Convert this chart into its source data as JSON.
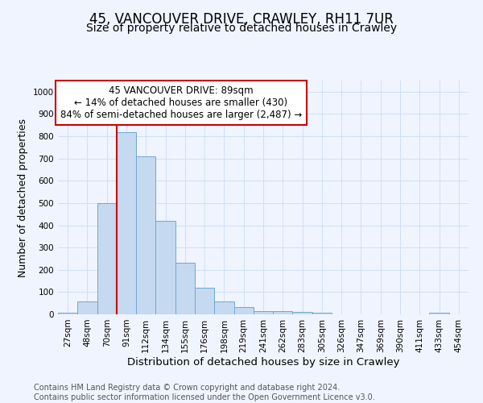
{
  "title": "45, VANCOUVER DRIVE, CRAWLEY, RH11 7UR",
  "subtitle": "Size of property relative to detached houses in Crawley",
  "xlabel": "Distribution of detached houses by size in Crawley",
  "ylabel": "Number of detached properties",
  "bin_labels": [
    "27sqm",
    "48sqm",
    "70sqm",
    "91sqm",
    "112sqm",
    "134sqm",
    "155sqm",
    "176sqm",
    "198sqm",
    "219sqm",
    "241sqm",
    "262sqm",
    "283sqm",
    "305sqm",
    "326sqm",
    "347sqm",
    "369sqm",
    "390sqm",
    "411sqm",
    "433sqm",
    "454sqm"
  ],
  "bar_values": [
    8,
    58,
    500,
    820,
    710,
    420,
    230,
    118,
    57,
    32,
    15,
    14,
    10,
    7,
    0,
    0,
    0,
    0,
    0,
    9,
    0
  ],
  "bar_color": "#c5d9f0",
  "bar_edge_color": "#6fa8d0",
  "background_color": "#f0f4ff",
  "grid_color": "#d0dff5",
  "vline_bin_index": 3,
  "vline_color": "#cc0000",
  "annotation_text": "45 VANCOUVER DRIVE: 89sqm\n← 14% of detached houses are smaller (430)\n84% of semi-detached houses are larger (2,487) →",
  "annotation_box_color": "#ffffff",
  "annotation_box_edge": "#cc0000",
  "ylim": [
    0,
    1050
  ],
  "yticks": [
    0,
    100,
    200,
    300,
    400,
    500,
    600,
    700,
    800,
    900,
    1000
  ],
  "footnote": "Contains HM Land Registry data © Crown copyright and database right 2024.\nContains public sector information licensed under the Open Government Licence v3.0.",
  "title_fontsize": 12,
  "subtitle_fontsize": 10,
  "xlabel_fontsize": 9.5,
  "ylabel_fontsize": 9,
  "tick_fontsize": 7.5,
  "annotation_fontsize": 8.5,
  "footnote_fontsize": 7
}
